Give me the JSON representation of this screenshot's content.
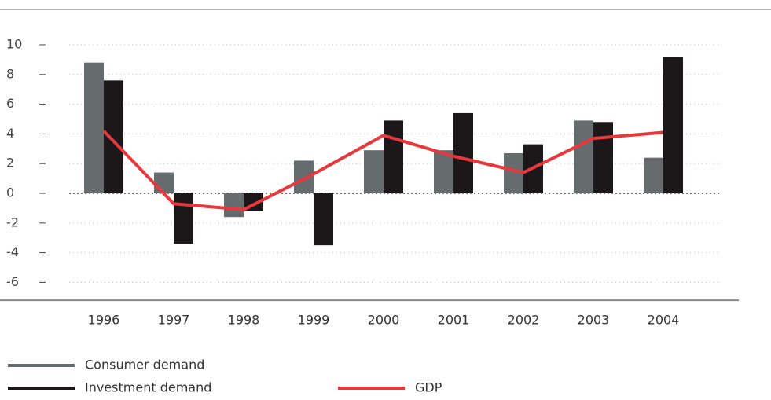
{
  "chart_data": {
    "type": "bar",
    "categories": [
      "1996",
      "1997",
      "1998",
      "1999",
      "2000",
      "2001",
      "2002",
      "2003",
      "2004"
    ],
    "series": [
      {
        "name": "Consumer demand",
        "color": "#666b6e",
        "values": [
          8.8,
          1.4,
          -1.6,
          2.2,
          2.9,
          2.9,
          2.7,
          4.9,
          2.4
        ]
      },
      {
        "name": "Investment demand",
        "color": "#1c1718",
        "values": [
          7.6,
          -3.4,
          -1.2,
          -3.5,
          4.9,
          5.4,
          3.3,
          4.8,
          9.2
        ]
      },
      {
        "name": "GDP",
        "type": "line",
        "color": "#e8383d",
        "values": [
          4.2,
          -0.7,
          -1.1,
          1.3,
          3.9,
          2.5,
          1.4,
          3.7,
          4.1
        ]
      }
    ],
    "ylim": [
      -7.2,
      10
    ],
    "yticks": [
      10,
      8,
      6,
      4,
      2,
      0,
      -2,
      -4,
      -6
    ],
    "grid": true
  }
}
